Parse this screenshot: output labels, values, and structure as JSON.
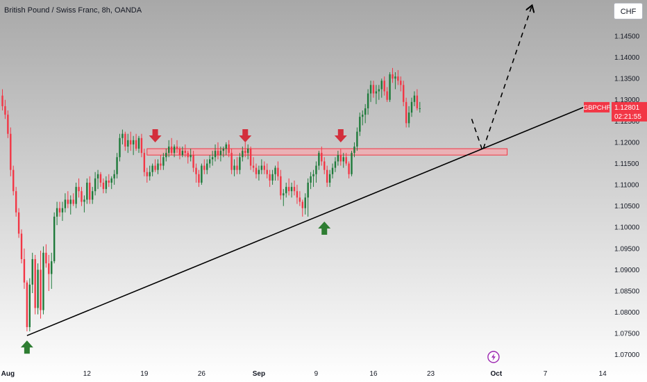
{
  "header": {
    "title": "British Pound / Swiss Franc, 8h, OANDA",
    "currency_button": "CHF"
  },
  "price_tag": {
    "symbol": "GBPCHF",
    "price": "1.12801",
    "countdown": "02:21:55"
  },
  "colors": {
    "up": "#1e7a3a",
    "down": "#f23645",
    "zone_fill": "#f4a8ae",
    "zone_stroke": "#f23645",
    "trendline": "#000000",
    "projection": "#000000",
    "arrow_down": "#d32f3c",
    "arrow_up": "#2e7d32",
    "bg_top": "#a8a8a8",
    "bg_bottom": "#ffffff",
    "event_icon": "#9c27b0"
  },
  "chart_data": {
    "type": "candlestick",
    "title": "British Pound / Swiss Franc, 8h, OANDA",
    "ylim": [
      1.0675,
      1.1535
    ],
    "y_ticks": [
      "1.15000",
      "1.14500",
      "1.14000",
      "1.13500",
      "1.13000",
      "1.12500",
      "1.12000",
      "1.11500",
      "1.11000",
      "1.10500",
      "1.10000",
      "1.09500",
      "1.09000",
      "1.08500",
      "1.08000",
      "1.07500",
      "1.07000"
    ],
    "x_ticks": [
      {
        "label": "Aug",
        "idx": 2,
        "bold": true
      },
      {
        "label": "12",
        "idx": 31,
        "bold": false
      },
      {
        "label": "19",
        "idx": 52,
        "bold": false
      },
      {
        "label": "26",
        "idx": 73,
        "bold": false
      },
      {
        "label": "Sep",
        "idx": 94,
        "bold": true
      },
      {
        "label": "9",
        "idx": 115,
        "bold": false
      },
      {
        "label": "16",
        "idx": 136,
        "bold": false
      },
      {
        "label": "23",
        "idx": 157,
        "bold": false
      },
      {
        "label": "Oct",
        "idx": 181,
        "bold": true
      },
      {
        "label": "7",
        "idx": 199,
        "bold": false
      },
      {
        "label": "14",
        "idx": 220,
        "bold": false
      }
    ],
    "candles": [
      [
        1.131,
        1.1325,
        1.1275,
        1.1285
      ],
      [
        1.1285,
        1.13,
        1.1255,
        1.1265
      ],
      [
        1.1265,
        1.1275,
        1.121,
        1.122
      ],
      [
        1.122,
        1.1235,
        1.112,
        1.1135
      ],
      [
        1.1135,
        1.1145,
        1.1075,
        1.1085
      ],
      [
        1.1085,
        1.1095,
        1.1025,
        1.1035
      ],
      [
        1.1035,
        1.1045,
        1.0975,
        1.0985
      ],
      [
        1.0985,
        1.0995,
        1.0915,
        1.0925
      ],
      [
        1.0925,
        1.095,
        1.0855,
        1.087
      ],
      [
        1.087,
        1.0875,
        1.0755,
        1.0765
      ],
      [
        1.0765,
        1.088,
        1.0755,
        1.0865
      ],
      [
        1.0865,
        1.094,
        1.0845,
        1.0925
      ],
      [
        1.0925,
        1.0935,
        1.0795,
        1.081
      ],
      [
        1.081,
        1.0915,
        1.0795,
        1.09
      ],
      [
        1.09,
        1.0945,
        1.0785,
        1.0805
      ],
      [
        1.0805,
        1.0955,
        1.0795,
        1.094
      ],
      [
        1.094,
        1.096,
        1.0905,
        1.0915
      ],
      [
        1.0915,
        1.0935,
        1.085,
        1.089
      ],
      [
        1.089,
        1.094,
        1.0855,
        1.092
      ],
      [
        1.092,
        1.1035,
        1.0915,
        1.1025
      ],
      [
        1.1025,
        1.106,
        1.1005,
        1.1045
      ],
      [
        1.1045,
        1.106,
        1.1025,
        1.1035
      ],
      [
        1.1035,
        1.106,
        1.1015,
        1.1045
      ],
      [
        1.1045,
        1.108,
        1.1035,
        1.1065
      ],
      [
        1.1065,
        1.1085,
        1.1045,
        1.1055
      ],
      [
        1.1055,
        1.1075,
        1.103,
        1.1065
      ],
      [
        1.1065,
        1.108,
        1.105,
        1.1055
      ],
      [
        1.1055,
        1.1105,
        1.1045,
        1.1095
      ],
      [
        1.1095,
        1.1115,
        1.107,
        1.1085
      ],
      [
        1.1085,
        1.1095,
        1.105,
        1.106
      ],
      [
        1.106,
        1.1075,
        1.1035,
        1.1065
      ],
      [
        1.1065,
        1.1115,
        1.1055,
        1.1105
      ],
      [
        1.1105,
        1.112,
        1.1055,
        1.1065
      ],
      [
        1.1065,
        1.1095,
        1.1055,
        1.1085
      ],
      [
        1.1085,
        1.113,
        1.1075,
        1.1115
      ],
      [
        1.1115,
        1.1135,
        1.109,
        1.1125
      ],
      [
        1.1125,
        1.113,
        1.1095,
        1.1105
      ],
      [
        1.1105,
        1.1115,
        1.108,
        1.109
      ],
      [
        1.109,
        1.112,
        1.108,
        1.111
      ],
      [
        1.111,
        1.1125,
        1.1095,
        1.1105
      ],
      [
        1.1105,
        1.112,
        1.109,
        1.1115
      ],
      [
        1.1115,
        1.1135,
        1.11,
        1.1125
      ],
      [
        1.1125,
        1.1175,
        1.1115,
        1.1165
      ],
      [
        1.1165,
        1.122,
        1.1155,
        1.121
      ],
      [
        1.121,
        1.123,
        1.1195,
        1.122
      ],
      [
        1.122,
        1.1225,
        1.118,
        1.119
      ],
      [
        1.119,
        1.122,
        1.1175,
        1.1205
      ],
      [
        1.1205,
        1.1225,
        1.118,
        1.1195
      ],
      [
        1.1195,
        1.1215,
        1.117,
        1.1205
      ],
      [
        1.1205,
        1.122,
        1.118,
        1.1185
      ],
      [
        1.1185,
        1.1215,
        1.1175,
        1.121
      ],
      [
        1.121,
        1.122,
        1.1165,
        1.1175
      ],
      [
        1.1175,
        1.1185,
        1.112,
        1.113
      ],
      [
        1.113,
        1.114,
        1.1105,
        1.112
      ],
      [
        1.112,
        1.1145,
        1.111,
        1.113
      ],
      [
        1.113,
        1.115,
        1.112,
        1.1145
      ],
      [
        1.1145,
        1.116,
        1.113,
        1.1135
      ],
      [
        1.1135,
        1.116,
        1.1125,
        1.115
      ],
      [
        1.115,
        1.117,
        1.1135,
        1.1145
      ],
      [
        1.1145,
        1.1175,
        1.1135,
        1.1165
      ],
      [
        1.1165,
        1.1185,
        1.1155,
        1.1175
      ],
      [
        1.1175,
        1.1205,
        1.1165,
        1.119
      ],
      [
        1.119,
        1.121,
        1.117,
        1.1175
      ],
      [
        1.1175,
        1.1195,
        1.1165,
        1.119
      ],
      [
        1.119,
        1.1205,
        1.1175,
        1.1185
      ],
      [
        1.1185,
        1.119,
        1.116,
        1.117
      ],
      [
        1.117,
        1.119,
        1.1165,
        1.118
      ],
      [
        1.118,
        1.1195,
        1.1165,
        1.1175
      ],
      [
        1.1175,
        1.118,
        1.115,
        1.1165
      ],
      [
        1.1165,
        1.1185,
        1.1155,
        1.117
      ],
      [
        1.117,
        1.118,
        1.113,
        1.114
      ],
      [
        1.114,
        1.115,
        1.1105,
        1.1125
      ],
      [
        1.1125,
        1.1135,
        1.1095,
        1.1105
      ],
      [
        1.1105,
        1.115,
        1.11,
        1.1145
      ],
      [
        1.1145,
        1.116,
        1.1125,
        1.1135
      ],
      [
        1.1135,
        1.116,
        1.1125,
        1.115
      ],
      [
        1.115,
        1.117,
        1.114,
        1.116
      ],
      [
        1.116,
        1.118,
        1.1145,
        1.1165
      ],
      [
        1.1165,
        1.1195,
        1.1155,
        1.118
      ],
      [
        1.118,
        1.12,
        1.116,
        1.117
      ],
      [
        1.117,
        1.119,
        1.1155,
        1.118
      ],
      [
        1.118,
        1.119,
        1.1165,
        1.1185
      ],
      [
        1.1185,
        1.12,
        1.117,
        1.1195
      ],
      [
        1.1195,
        1.1205,
        1.1165,
        1.1175
      ],
      [
        1.1175,
        1.1185,
        1.1125,
        1.1135
      ],
      [
        1.1135,
        1.116,
        1.112,
        1.1145
      ],
      [
        1.1145,
        1.1165,
        1.1125,
        1.1135
      ],
      [
        1.1135,
        1.1175,
        1.1125,
        1.1165
      ],
      [
        1.1165,
        1.119,
        1.1155,
        1.118
      ],
      [
        1.118,
        1.12,
        1.1165,
        1.1175
      ],
      [
        1.1175,
        1.1195,
        1.116,
        1.1185
      ],
      [
        1.1185,
        1.119,
        1.1135,
        1.1145
      ],
      [
        1.1145,
        1.1165,
        1.113,
        1.114
      ],
      [
        1.114,
        1.115,
        1.1115,
        1.1125
      ],
      [
        1.1125,
        1.1145,
        1.111,
        1.1135
      ],
      [
        1.1135,
        1.116,
        1.1125,
        1.1145
      ],
      [
        1.1145,
        1.1155,
        1.1125,
        1.1135
      ],
      [
        1.1135,
        1.115,
        1.1115,
        1.1125
      ],
      [
        1.1125,
        1.1135,
        1.1095,
        1.111
      ],
      [
        1.111,
        1.1135,
        1.11,
        1.1125
      ],
      [
        1.1125,
        1.1145,
        1.111,
        1.114
      ],
      [
        1.114,
        1.1155,
        1.111,
        1.112
      ],
      [
        1.112,
        1.1135,
        1.1065,
        1.1075
      ],
      [
        1.1075,
        1.109,
        1.105,
        1.108
      ],
      [
        1.108,
        1.1105,
        1.107,
        1.1095
      ],
      [
        1.1095,
        1.1115,
        1.1075,
        1.1085
      ],
      [
        1.1085,
        1.1105,
        1.107,
        1.1095
      ],
      [
        1.1095,
        1.111,
        1.1075,
        1.1085
      ],
      [
        1.1085,
        1.11,
        1.1055,
        1.107
      ],
      [
        1.107,
        1.1085,
        1.105,
        1.106
      ],
      [
        1.106,
        1.1065,
        1.1025,
        1.1045
      ],
      [
        1.1045,
        1.108,
        1.103,
        1.107
      ],
      [
        1.107,
        1.1115,
        1.1025,
        1.1105
      ],
      [
        1.1105,
        1.113,
        1.109,
        1.112
      ],
      [
        1.112,
        1.1135,
        1.1095,
        1.1125
      ],
      [
        1.1125,
        1.1155,
        1.1105,
        1.1145
      ],
      [
        1.1145,
        1.118,
        1.1135,
        1.1175
      ],
      [
        1.1175,
        1.119,
        1.1145,
        1.1155
      ],
      [
        1.1155,
        1.1165,
        1.1125,
        1.1135
      ],
      [
        1.1135,
        1.1145,
        1.1095,
        1.1105
      ],
      [
        1.1105,
        1.1135,
        1.1095,
        1.1125
      ],
      [
        1.1125,
        1.115,
        1.1115,
        1.114
      ],
      [
        1.114,
        1.1165,
        1.113,
        1.1155
      ],
      [
        1.1155,
        1.118,
        1.1145,
        1.117
      ],
      [
        1.117,
        1.1185,
        1.1145,
        1.1155
      ],
      [
        1.1155,
        1.1175,
        1.114,
        1.1165
      ],
      [
        1.1165,
        1.1175,
        1.1145,
        1.115
      ],
      [
        1.115,
        1.1155,
        1.1115,
        1.1125
      ],
      [
        1.1125,
        1.118,
        1.112,
        1.1175
      ],
      [
        1.1175,
        1.12,
        1.1165,
        1.119
      ],
      [
        1.119,
        1.1235,
        1.118,
        1.1225
      ],
      [
        1.1225,
        1.127,
        1.1215,
        1.126
      ],
      [
        1.126,
        1.1275,
        1.124,
        1.1265
      ],
      [
        1.1265,
        1.129,
        1.1245,
        1.128
      ],
      [
        1.128,
        1.1325,
        1.1265,
        1.1315
      ],
      [
        1.1315,
        1.1345,
        1.1295,
        1.1335
      ],
      [
        1.1335,
        1.1345,
        1.1305,
        1.1315
      ],
      [
        1.1315,
        1.1335,
        1.129,
        1.132
      ],
      [
        1.132,
        1.1335,
        1.13,
        1.1325
      ],
      [
        1.1325,
        1.135,
        1.1305,
        1.1345
      ],
      [
        1.1345,
        1.1355,
        1.131,
        1.132
      ],
      [
        1.132,
        1.133,
        1.1295,
        1.13
      ],
      [
        1.13,
        1.1365,
        1.1295,
        1.136
      ],
      [
        1.136,
        1.1375,
        1.134,
        1.135
      ],
      [
        1.135,
        1.1365,
        1.1325,
        1.1355
      ],
      [
        1.1355,
        1.137,
        1.1335,
        1.1345
      ],
      [
        1.1345,
        1.1355,
        1.132,
        1.1335
      ],
      [
        1.1335,
        1.1345,
        1.1285,
        1.1295
      ],
      [
        1.1295,
        1.1305,
        1.1235,
        1.1245
      ],
      [
        1.1245,
        1.1285,
        1.1235,
        1.127
      ],
      [
        1.127,
        1.1305,
        1.126,
        1.1295
      ],
      [
        1.1295,
        1.132,
        1.1285,
        1.131
      ],
      [
        1.131,
        1.1325,
        1.1275,
        1.128
      ],
      [
        1.128,
        1.1295,
        1.127,
        1.128
      ]
    ],
    "annotations": {
      "resistance_zone": {
        "from_idx": 53,
        "to_idx": 185,
        "low": 1.117,
        "high": 1.1185
      },
      "trendline": {
        "from_idx": 9,
        "from_price": 1.0745,
        "to_idx": 214,
        "to_price": 1.1285
      },
      "projection_path": [
        {
          "idx": 172,
          "price": 1.1255
        },
        {
          "idx": 176,
          "price": 1.118
        },
        {
          "idx": 194,
          "price": 1.152
        }
      ],
      "down_arrows": [
        {
          "idx": 56,
          "price": 1.1195
        },
        {
          "idx": 89,
          "price": 1.1195
        },
        {
          "idx": 124,
          "price": 1.1195
        }
      ],
      "up_arrows": [
        {
          "idx": 9,
          "price": 1.0735
        },
        {
          "idx": 118,
          "price": 1.1015
        }
      ]
    },
    "current_price": 1.12801
  }
}
